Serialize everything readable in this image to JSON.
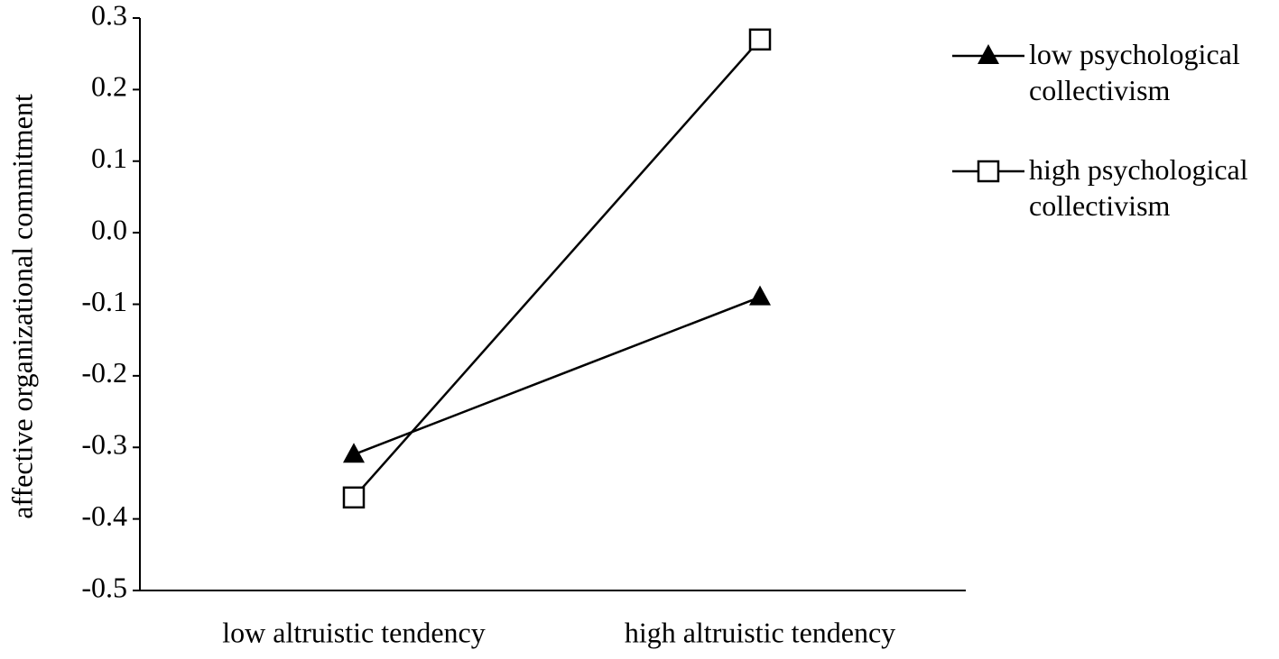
{
  "chart_data": {
    "type": "line",
    "y_label": "affective organizational commitment",
    "categories": [
      "low altruistic tendency",
      "high altruistic tendency"
    ],
    "series": [
      {
        "name": "low psychological collectivism",
        "color": "#000000",
        "marker": "triangle",
        "values": [
          -0.31,
          -0.09
        ]
      },
      {
        "name": "high psychological collectivism",
        "color": "#000000",
        "marker": "square",
        "values": [
          -0.37,
          0.27
        ]
      }
    ],
    "ylim": [
      -0.5,
      0.3
    ],
    "yticks": [
      -0.5,
      -0.4,
      -0.3,
      -0.2,
      -0.1,
      {
        "value": 0,
        "label": "0.0"
      },
      0.1,
      0.2,
      0.3
    ],
    "grid": false,
    "legend": "right"
  }
}
